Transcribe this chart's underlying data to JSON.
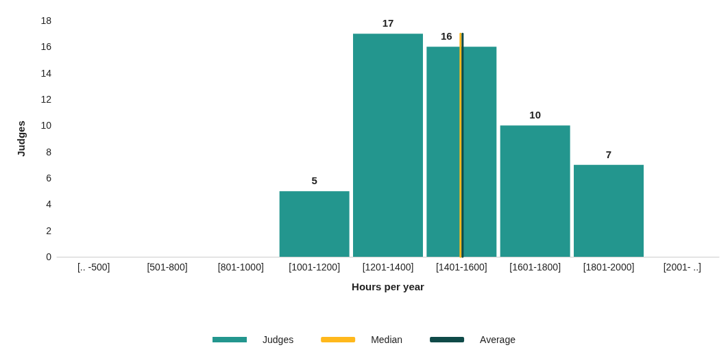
{
  "chart_data": {
    "type": "bar",
    "xlabel": "Hours per year",
    "ylabel": "Judges",
    "categories": [
      "[.. -500]",
      "[501-800]",
      "[801-1000]",
      "[1001-1200]",
      "[1201-1400]",
      "[1401-1600]",
      "[1601-1800]",
      "[1801-2000]",
      "[2001- ..]"
    ],
    "series": [
      {
        "name": "Judges",
        "color": "#23968e",
        "values": [
          0,
          0,
          0,
          5,
          17,
          16,
          10,
          7,
          0
        ],
        "value_labels": [
          null,
          null,
          null,
          "5",
          "17",
          "16",
          "10",
          "7",
          null
        ]
      },
      {
        "name": "Median",
        "type": "line",
        "color": "#ffb81c",
        "x": [
          "[1401-1600]",
          "[1401-1600]"
        ],
        "values": [
          0,
          17
        ]
      },
      {
        "name": "Average",
        "type": "line",
        "color": "#0f4a48",
        "x": [
          "[1401-1600]",
          "[1401-1600]"
        ],
        "values": [
          0,
          17
        ]
      }
    ],
    "ylim": [
      0,
      18
    ],
    "yticks": [
      0,
      2,
      4,
      6,
      8,
      10,
      12,
      14,
      16,
      18
    ],
    "grid": false,
    "legend": "bottom"
  }
}
